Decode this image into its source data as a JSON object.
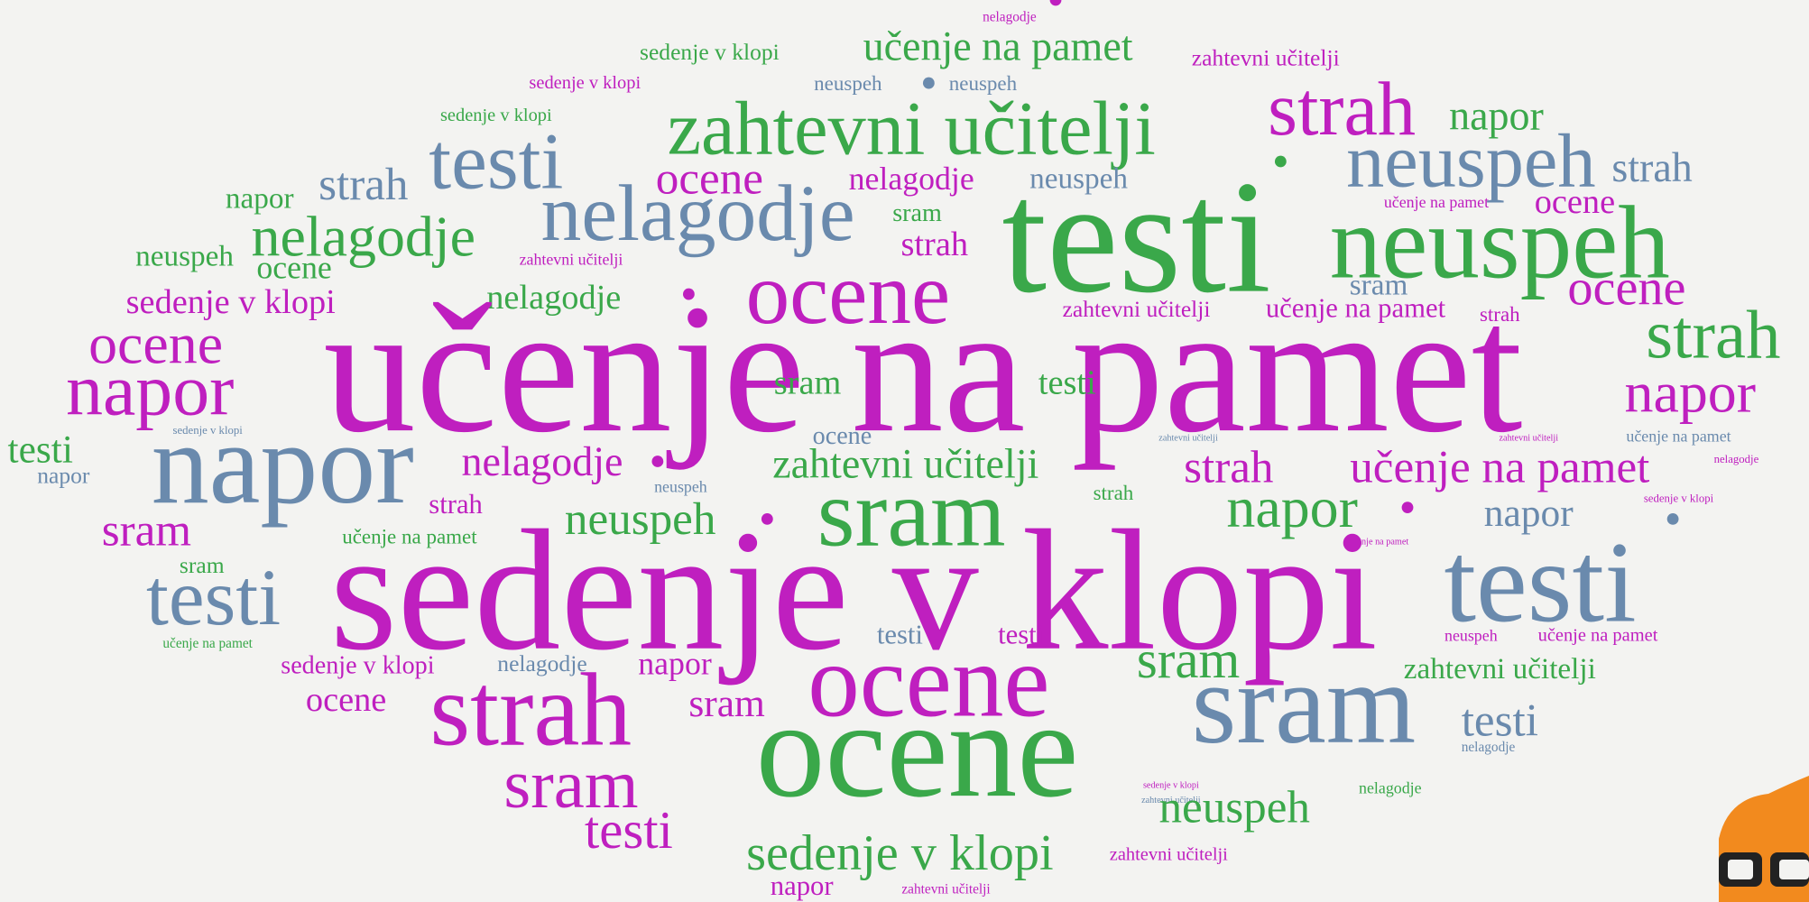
{
  "words": [
    "nelagodje",
    "sedenje v klopi",
    "učenje na pamet",
    "zahtevni učitelji",
    "sedenje v klopi",
    "neuspeh",
    "neuspeh",
    "sedenje v klopi",
    "zahtevni učitelji",
    "strah",
    "napor",
    "testi",
    "strah",
    "ocene",
    "nelagodje",
    "neuspeh",
    "neuspeh",
    "strah",
    "napor",
    "testi",
    "nelagodje",
    "sram",
    "učenje na pamet",
    "ocene",
    "nelagodje",
    "ocene",
    "neuspeh",
    "zahtevni učitelji",
    "strah",
    "neuspeh",
    "sram",
    "ocene",
    "sedenje v klopi",
    "nelagodje",
    "ocene",
    "zahtevni učitelji",
    "učenje na pamet",
    "strah",
    "ocene",
    "učenje na pamet",
    "strah",
    "napor",
    "sram",
    "testi",
    "napor",
    "sedenje v klopi",
    "ocene",
    "zahtevni učitelji",
    "zahtevni učitelji",
    "učenje na pamet",
    "testi",
    "napor",
    "napor",
    "nelagodje",
    "zahtevni učitelji",
    "strah",
    "učenje na pamet",
    "nelagodje",
    "strah",
    "neuspeh",
    "strah",
    "sedenje v klopi",
    "sram",
    "učenje na pamet",
    "neuspeh",
    "sram",
    "napor",
    "napor",
    "učenje na pamet",
    "sram",
    "testi",
    "sedenje v klopi",
    "testi",
    "testi",
    "testi",
    "neuspeh",
    "učenje na pamet",
    "učenje na pamet",
    "sedenje v klopi",
    "nelagodje",
    "napor",
    "ocene",
    "sram",
    "zahtevni učitelji",
    "ocene",
    "strah",
    "sram",
    "sram",
    "testi",
    "nelagodje",
    "ocene",
    "sram",
    "sedenje v klopi",
    "nelagodje",
    "zahtevni učitelji",
    "neuspeh",
    "testi",
    "sedenje v klopi",
    "zahtevni učitelji",
    "napor",
    "zahtevni učitelji"
  ]
}
